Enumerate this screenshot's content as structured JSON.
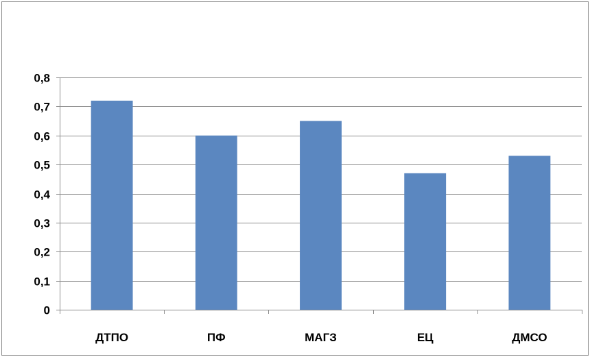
{
  "chart_data": {
    "type": "bar",
    "categories": [
      "ДТПО",
      "ПФ",
      "МАГЗ",
      "ЕЦ",
      "ДМСО"
    ],
    "values": [
      0.72,
      0.6,
      0.65,
      0.47,
      0.53
    ],
    "ylim": [
      0,
      0.8
    ],
    "yticks": [
      0,
      0.1,
      0.2,
      0.3,
      0.4,
      0.5,
      0.6,
      0.7,
      0.8
    ],
    "ytick_labels": [
      "0",
      "0,1",
      "0,2",
      "0,3",
      "0,4",
      "0,5",
      "0,6",
      "0,7",
      "0,8"
    ],
    "grid": true,
    "legend": false,
    "bar_color": "#5b87c0",
    "grid_color": "#8c8c8c",
    "title": "",
    "xlabel": "",
    "ylabel": ""
  }
}
